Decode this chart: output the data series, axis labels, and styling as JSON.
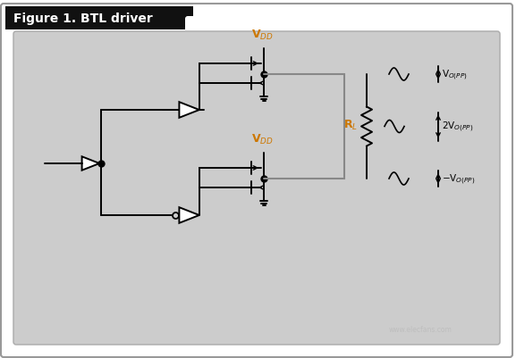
{
  "title": "Figure 1. BTL driver",
  "title_bg": "#111111",
  "title_color": "#ffffff",
  "bg_color": "#cccccc",
  "outer_bg": "#ffffff",
  "line_color": "#000000",
  "gray_line_color": "#888888",
  "orange_color": "#cc7700",
  "fig_width": 5.77,
  "fig_height": 4.02,
  "vdd_label": "V$_{DD}$",
  "rl_label": "R$_{L}$",
  "vo_pp_label": "V$_{O(PP)}$",
  "vo_2pp_label": "2V$_{O(PP)}$",
  "vo_neg_pp_label": "−V$_{O(PP)}$"
}
